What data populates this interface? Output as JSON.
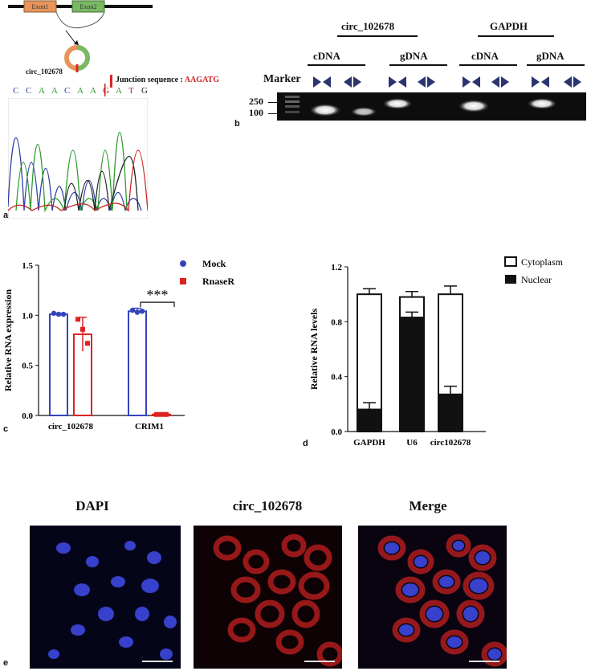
{
  "panel_letters": {
    "a": "a",
    "b": "b",
    "c": "c",
    "d": "d",
    "e": "e"
  },
  "panel_a": {
    "exon1": "Exon1",
    "exon2": "Exon2",
    "circ_label": "circ_102678",
    "junction_prefix": "Junction sequence : ",
    "junction_seq": "AAGATG",
    "bases": [
      "C",
      "C",
      "A",
      "A",
      "C",
      "A",
      "A",
      "G",
      "A",
      "T",
      "G"
    ],
    "colors": {
      "A": "#2e9a2e",
      "C": "#2c3fa8",
      "G": "#222222",
      "T": "#cc2222",
      "junction": "#cc2222"
    }
  },
  "panel_b": {
    "group1": "circ_102678",
    "group2": "GAPDH",
    "lanes": [
      "cDNA",
      "gDNA",
      "cDNA",
      "gDNA"
    ],
    "marker": "Marker",
    "size_250": "250",
    "size_100": "100"
  },
  "chart_data": [
    {
      "type": "bar",
      "ylabel": "Relative RNA expression",
      "categories": [
        "circ_102678",
        "CRIM1"
      ],
      "series": [
        {
          "name": "Mock",
          "values": [
            1.01,
            1.04
          ],
          "errors": [
            0.01,
            0.03
          ],
          "points": [
            [
              1.02,
              1.01,
              1.01
            ],
            [
              1.05,
              1.03,
              1.04
            ]
          ],
          "color": "#3344bb"
        },
        {
          "name": "RnaseR",
          "values": [
            0.81,
            0.01
          ],
          "errors": [
            0.17,
            0.005
          ],
          "points": [
            [
              0.96,
              0.86,
              0.72
            ],
            [
              0.01,
              0.01,
              0.01
            ]
          ],
          "color": "#dd2222"
        }
      ],
      "ylim": [
        0,
        1.5
      ],
      "yticks": [
        "0.0",
        "0.5",
        "1.0",
        "1.5"
      ],
      "significance": "***"
    },
    {
      "type": "bar",
      "stacked": true,
      "ylabel": "Relative RNA levels",
      "categories": [
        "GAPDH",
        "U6",
        "circ102678"
      ],
      "series": [
        {
          "name": "Cytoplasm",
          "values": [
            0.84,
            0.15,
            0.73
          ],
          "errors": [
            0.04,
            0.04,
            0.06
          ]
        },
        {
          "name": "Nuclear",
          "values": [
            0.16,
            0.83,
            0.27
          ],
          "errors": [
            0.05,
            0.04,
            0.06
          ]
        }
      ],
      "ylim": [
        0,
        1.2
      ],
      "yticks": [
        "0.0",
        "0.4",
        "0.8",
        "1.2"
      ],
      "legend_position": "top-right"
    }
  ],
  "panel_e": {
    "titles": [
      "DAPI",
      "circ_102678",
      "Merge"
    ]
  }
}
